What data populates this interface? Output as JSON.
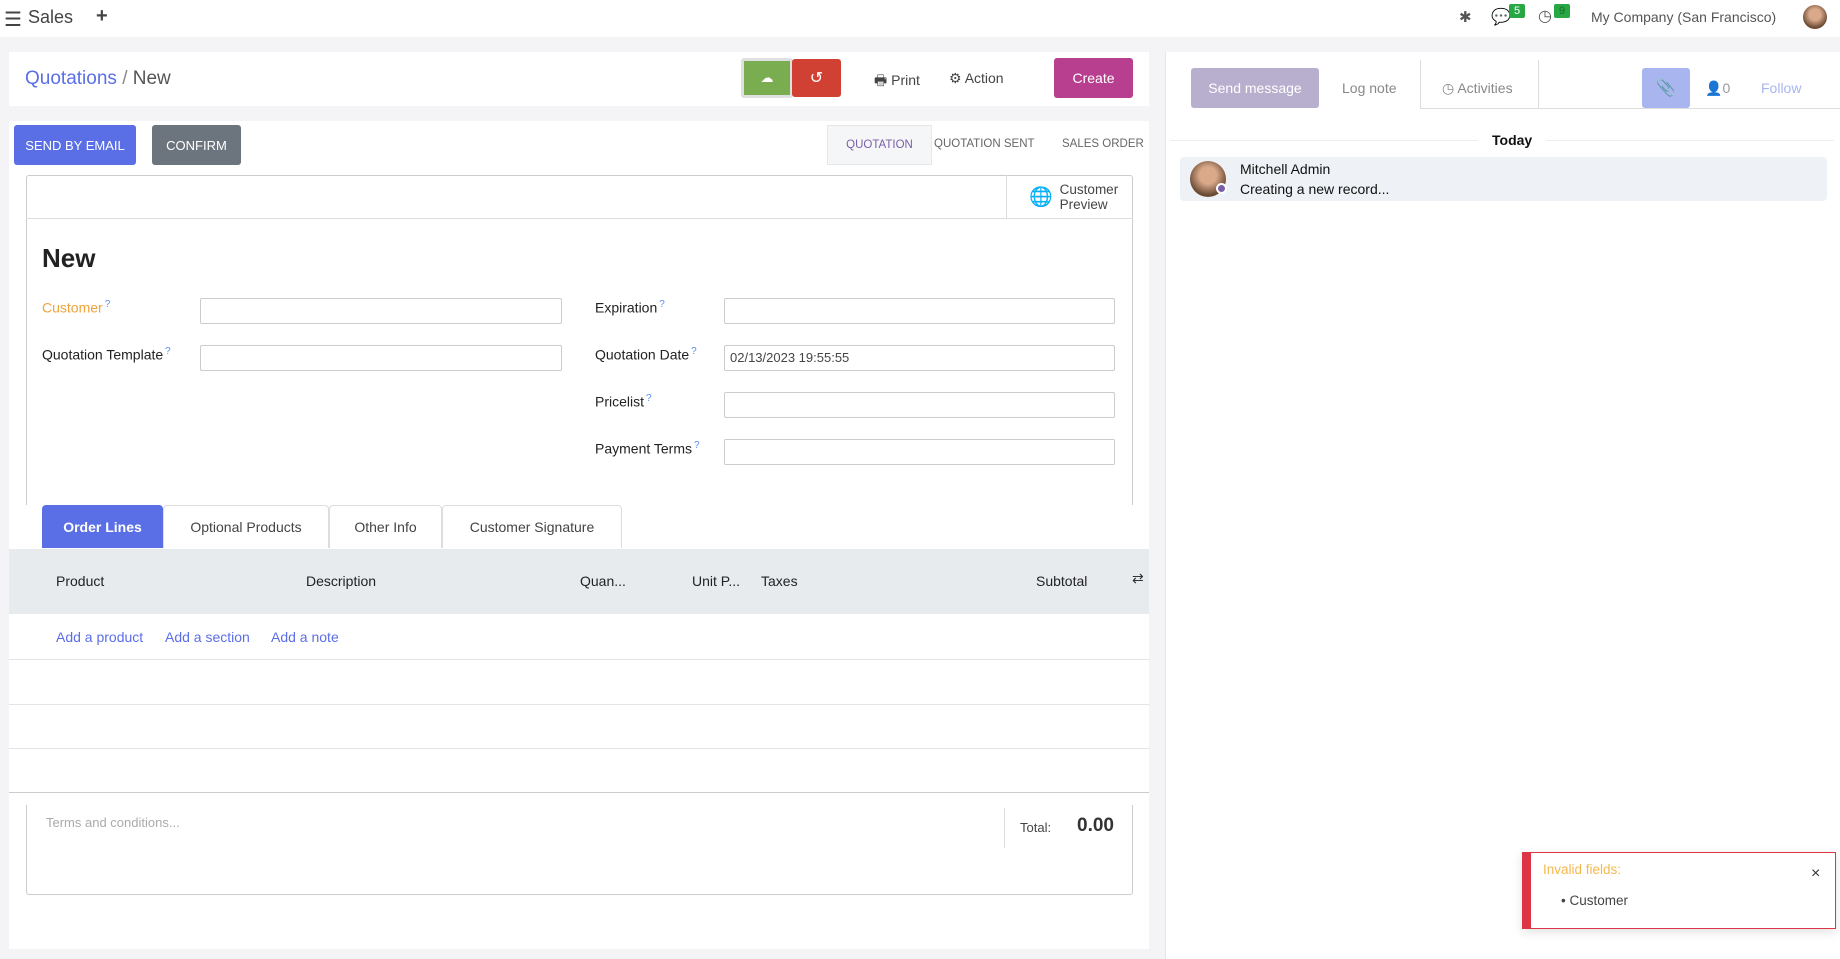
{
  "topbar": {
    "app_name": "Sales",
    "company": "My Company (San Francisco)",
    "messages_count": "5",
    "activities_count": "9",
    "icons": [
      "menu-icon",
      "plus-icon",
      "bug-icon",
      "chat-icon",
      "clock-icon"
    ]
  },
  "breadcrumb": {
    "parent": "Quotations",
    "separator": "/",
    "current": "New"
  },
  "toolbar": {
    "print": "Print",
    "action": "Action",
    "create": "Create"
  },
  "status_buttons": {
    "send_by_email": "SEND BY EMAIL",
    "confirm": "CONFIRM"
  },
  "statusbar": [
    "QUOTATION",
    "QUOTATION SENT",
    "SALES ORDER"
  ],
  "smart_button": {
    "line1": "Customer",
    "line2": "Preview"
  },
  "form": {
    "title": "New",
    "customer": {
      "label": "Customer",
      "value": ""
    },
    "quotation_template": {
      "label": "Quotation Template",
      "value": ""
    },
    "expiration": {
      "label": "Expiration",
      "value": ""
    },
    "quotation_date": {
      "label": "Quotation Date",
      "value": "02/13/2023 19:55:55"
    },
    "pricelist": {
      "label": "Pricelist",
      "value": ""
    },
    "payment_terms": {
      "label": "Payment Terms",
      "value": ""
    },
    "help_mark": "?"
  },
  "tabs": [
    "Order Lines",
    "Optional Products",
    "Other Info",
    "Customer Signature"
  ],
  "table": {
    "columns": [
      "Product",
      "Description",
      "Quan...",
      "Unit P...",
      "Taxes",
      "Subtotal"
    ],
    "add_links": [
      "Add a product",
      "Add a section",
      "Add a note"
    ]
  },
  "footer": {
    "terms_placeholder": "Terms and conditions...",
    "total_label": "Total:",
    "total_value": "0.00"
  },
  "chatter": {
    "send_message": "Send message",
    "log_note": "Log note",
    "activities": "Activities",
    "followers": "0",
    "follow": "Follow",
    "date_separator": "Today",
    "message": {
      "author": "Mitchell Admin",
      "body": "Creating a new record..."
    }
  },
  "toast": {
    "title": "Invalid fields:",
    "items": [
      "Customer"
    ],
    "close": "×"
  },
  "colors": {
    "primary": "#5a6fe6",
    "create": "#b83f8f",
    "save": "#7aad4f",
    "discard": "#d04133",
    "required": "#f0a23a",
    "toast_border": "#dc3545"
  }
}
